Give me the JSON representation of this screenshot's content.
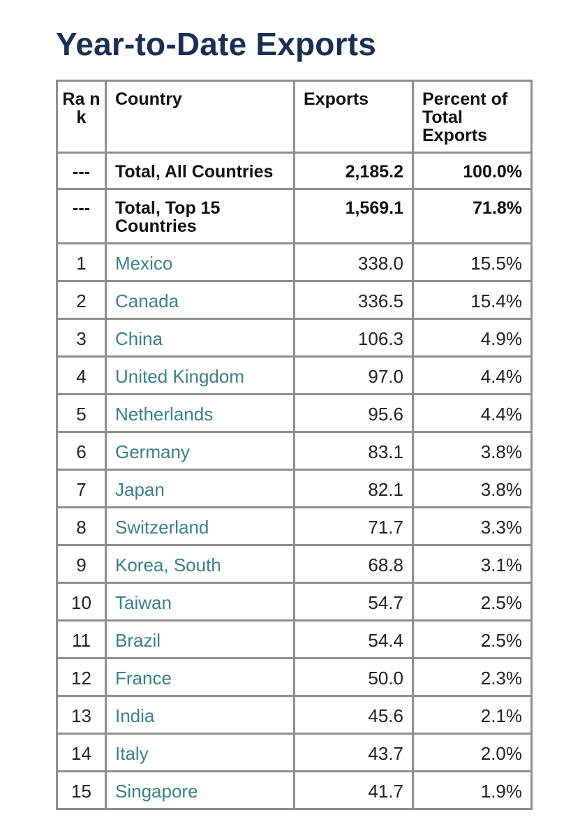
{
  "page": {
    "title": "Year-to-Date Exports"
  },
  "table": {
    "headers": {
      "rank": "Ra nk",
      "country": "Country",
      "exports": "Exports",
      "percent": "Percent of Total Exports"
    },
    "totals": [
      {
        "rank": "---",
        "country": "Total, All Countries",
        "exports": "2,185.2",
        "percent": "100.0%"
      },
      {
        "rank": "---",
        "country": "Total, Top 15 Countries",
        "exports": "1,569.1",
        "percent": "71.8%"
      }
    ],
    "rows": [
      {
        "rank": "1",
        "country": "Mexico",
        "exports": "338.0",
        "percent": "15.5%"
      },
      {
        "rank": "2",
        "country": "Canada",
        "exports": "336.5",
        "percent": "15.4%"
      },
      {
        "rank": "3",
        "country": "China",
        "exports": "106.3",
        "percent": "4.9%"
      },
      {
        "rank": "4",
        "country": "United Kingdom",
        "exports": "97.0",
        "percent": "4.4%"
      },
      {
        "rank": "5",
        "country": "Netherlands",
        "exports": "95.6",
        "percent": "4.4%"
      },
      {
        "rank": "6",
        "country": "Germany",
        "exports": "83.1",
        "percent": "3.8%"
      },
      {
        "rank": "7",
        "country": "Japan",
        "exports": "82.1",
        "percent": "3.8%"
      },
      {
        "rank": "8",
        "country": "Switzerland",
        "exports": "71.7",
        "percent": "3.3%"
      },
      {
        "rank": "9",
        "country": "Korea, South",
        "exports": "68.8",
        "percent": "3.1%"
      },
      {
        "rank": "10",
        "country": "Taiwan",
        "exports": "54.7",
        "percent": "2.5%"
      },
      {
        "rank": "11",
        "country": "Brazil",
        "exports": "54.4",
        "percent": "2.5%"
      },
      {
        "rank": "12",
        "country": "France",
        "exports": "50.0",
        "percent": "2.3%"
      },
      {
        "rank": "13",
        "country": "India",
        "exports": "45.6",
        "percent": "2.1%"
      },
      {
        "rank": "14",
        "country": "Italy",
        "exports": "43.7",
        "percent": "2.0%"
      },
      {
        "rank": "15",
        "country": "Singapore",
        "exports": "41.7",
        "percent": "1.9%"
      }
    ]
  },
  "colors": {
    "title": "#1b2f52",
    "country_link": "#3a7f8d",
    "border": "#8f8f8f"
  }
}
